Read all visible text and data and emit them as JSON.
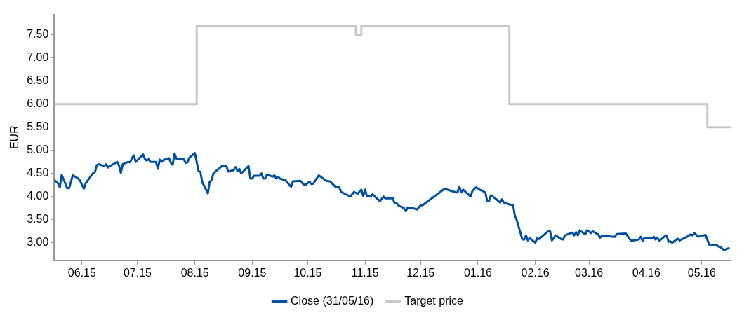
{
  "chart_data": {
    "type": "line",
    "ylabel": "EUR",
    "xlim": [
      "2015-05-17",
      "2016-05-17"
    ],
    "ylim": [
      2.62,
      7.94
    ],
    "xticks": [
      {
        "value": "2015-06-01",
        "label": "06.15"
      },
      {
        "value": "2015-07-01",
        "label": "07.15"
      },
      {
        "value": "2015-08-01",
        "label": "08.15"
      },
      {
        "value": "2015-09-01",
        "label": "09.15"
      },
      {
        "value": "2015-10-01",
        "label": "10.15"
      },
      {
        "value": "2015-11-01",
        "label": "11.15"
      },
      {
        "value": "2015-12-01",
        "label": "12.15"
      },
      {
        "value": "2016-01-01",
        "label": "01.16"
      },
      {
        "value": "2016-02-01",
        "label": "02.16"
      },
      {
        "value": "2016-03-01",
        "label": "03.16"
      },
      {
        "value": "2016-04-01",
        "label": "04.16"
      },
      {
        "value": "2016-05-01",
        "label": "05.16"
      }
    ],
    "yticks": [
      {
        "value": 3,
        "label": "3.00"
      },
      {
        "value": 3.5,
        "label": "3.50"
      },
      {
        "value": 4,
        "label": "4.00"
      },
      {
        "value": 4.5,
        "label": "4.50"
      },
      {
        "value": 5,
        "label": "5.00"
      },
      {
        "value": 5.5,
        "label": "5.50"
      },
      {
        "value": 6,
        "label": "6.00"
      },
      {
        "value": 6.5,
        "label": "6.50"
      },
      {
        "value": 7,
        "label": "7.00"
      },
      {
        "value": 7.5,
        "label": "7.50"
      }
    ],
    "grid": false,
    "legend": "bottom",
    "marker": "none",
    "line_style": "solid",
    "series": [
      {
        "name": "Close (31/05/16)",
        "color": "#0050a0",
        "x": [
          "2015-05-17",
          "2015-05-19",
          "2015-05-20",
          "2015-05-21",
          "2015-05-24",
          "2015-05-25",
          "2015-05-27",
          "2015-05-30",
          "2015-05-31",
          "2015-06-01",
          "2015-06-02",
          "2015-06-03",
          "2015-06-07",
          "2015-06-08",
          "2015-06-09",
          "2015-06-10",
          "2015-06-13",
          "2015-06-14",
          "2015-06-15",
          "2015-06-17",
          "2015-06-20",
          "2015-06-21",
          "2015-06-22",
          "2015-06-23",
          "2015-06-26",
          "2015-06-27",
          "2015-06-28",
          "2015-06-29",
          "2015-06-30",
          "2015-07-04",
          "2015-07-05",
          "2015-07-06",
          "2015-07-07",
          "2015-07-08",
          "2015-07-11",
          "2015-07-12",
          "2015-07-13",
          "2015-07-14",
          "2015-07-15",
          "2015-07-18",
          "2015-07-19",
          "2015-07-20",
          "2015-07-21",
          "2015-07-22",
          "2015-07-26",
          "2015-07-27",
          "2015-07-28",
          "2015-07-29",
          "2015-08-01",
          "2015-08-03",
          "2015-08-04",
          "2015-08-05",
          "2015-08-08",
          "2015-08-09",
          "2015-08-10",
          "2015-08-11",
          "2015-08-16",
          "2015-08-18",
          "2015-08-19",
          "2015-08-22",
          "2015-08-23",
          "2015-08-24",
          "2015-08-25",
          "2015-08-26",
          "2015-08-30",
          "2015-08-31",
          "2015-09-01",
          "2015-09-02",
          "2015-09-05",
          "2015-09-06",
          "2015-09-07",
          "2015-09-08",
          "2015-09-09",
          "2015-09-12",
          "2015-09-13",
          "2015-09-14",
          "2015-09-15",
          "2015-09-16",
          "2015-09-19",
          "2015-09-22",
          "2015-09-23",
          "2015-09-27",
          "2015-09-29",
          "2015-09-30",
          "2015-10-02",
          "2015-10-03",
          "2015-10-04",
          "2015-10-07",
          "2015-10-11",
          "2015-10-13",
          "2015-10-16",
          "2015-10-18",
          "2015-10-19",
          "2015-10-21",
          "2015-10-24",
          "2015-10-26",
          "2015-10-28",
          "2015-10-30",
          "2015-10-31",
          "2015-11-01",
          "2015-11-02",
          "2015-11-03",
          "2015-11-04",
          "2015-11-05",
          "2015-11-09",
          "2015-11-11",
          "2015-11-12",
          "2015-11-16",
          "2015-11-17",
          "2015-11-18",
          "2015-11-19",
          "2015-11-22",
          "2015-11-23",
          "2015-11-24",
          "2015-11-26",
          "2015-11-29",
          "2015-12-01",
          "2015-12-02",
          "2015-12-14",
          "2015-12-20",
          "2015-12-21",
          "2015-12-22",
          "2015-12-23",
          "2015-12-24",
          "2015-12-28",
          "2015-12-29",
          "2015-12-31",
          "2016-01-02",
          "2016-01-05",
          "2016-01-06",
          "2016-01-07",
          "2016-01-08",
          "2016-01-11",
          "2016-01-13",
          "2016-01-14",
          "2016-01-15",
          "2016-01-18",
          "2016-01-19",
          "2016-01-20",
          "2016-01-21",
          "2016-01-22",
          "2016-01-25",
          "2016-01-26",
          "2016-01-27",
          "2016-01-28",
          "2016-01-29",
          "2016-02-01",
          "2016-02-02",
          "2016-02-03",
          "2016-02-08",
          "2016-02-09",
          "2016-02-10",
          "2016-02-12",
          "2016-02-15",
          "2016-02-16",
          "2016-02-17",
          "2016-02-21",
          "2016-02-22",
          "2016-02-23",
          "2016-02-24",
          "2016-02-25",
          "2016-02-28",
          "2016-02-29",
          "2016-03-01",
          "2016-03-02",
          "2016-03-03",
          "2016-03-06",
          "2016-03-07",
          "2016-03-08",
          "2016-03-15",
          "2016-03-16",
          "2016-03-21",
          "2016-03-23",
          "2016-03-24",
          "2016-03-28",
          "2016-03-29",
          "2016-03-30",
          "2016-03-31",
          "2016-04-02",
          "2016-04-04",
          "2016-04-05",
          "2016-04-06",
          "2016-04-07",
          "2016-04-08",
          "2016-04-11",
          "2016-04-12",
          "2016-04-13",
          "2016-04-14",
          "2016-04-15",
          "2016-04-18",
          "2016-04-19",
          "2016-04-23",
          "2016-04-25",
          "2016-04-26",
          "2016-04-27",
          "2016-04-29",
          "2016-05-03",
          "2016-05-05",
          "2016-05-09",
          "2016-05-10",
          "2016-05-11",
          "2016-05-13",
          "2016-05-16"
        ],
        "values": [
          4.36,
          4.29,
          4.2,
          4.47,
          4.18,
          4.18,
          4.46,
          4.39,
          4.34,
          4.25,
          4.17,
          4.29,
          4.51,
          4.53,
          4.68,
          4.7,
          4.66,
          4.7,
          4.63,
          4.68,
          4.75,
          4.67,
          4.51,
          4.7,
          4.75,
          4.74,
          4.83,
          4.89,
          4.75,
          4.91,
          4.81,
          4.78,
          4.81,
          4.75,
          4.75,
          4.6,
          4.8,
          4.75,
          4.79,
          4.83,
          4.73,
          4.69,
          4.93,
          4.82,
          4.81,
          4.73,
          4.74,
          4.84,
          4.94,
          4.55,
          4.53,
          4.31,
          4.07,
          4.32,
          4.35,
          4.5,
          4.67,
          4.67,
          4.54,
          4.57,
          4.64,
          4.55,
          4.6,
          4.5,
          4.66,
          4.39,
          4.39,
          4.45,
          4.45,
          4.5,
          4.39,
          4.39,
          4.48,
          4.43,
          4.46,
          4.39,
          4.43,
          4.39,
          4.35,
          4.21,
          4.33,
          4.34,
          4.25,
          4.26,
          4.32,
          4.27,
          4.28,
          4.46,
          4.34,
          4.33,
          4.21,
          4.2,
          4.1,
          4.06,
          4.0,
          4.1,
          4.06,
          4.15,
          4.01,
          4.15,
          4.0,
          4.02,
          4.0,
          4.05,
          3.9,
          4.0,
          3.96,
          3.96,
          3.85,
          3.86,
          3.81,
          3.75,
          3.68,
          3.76,
          3.76,
          3.72,
          3.81,
          3.81,
          4.17,
          4.09,
          4.09,
          4.21,
          4.09,
          4.15,
          4.0,
          4.12,
          4.2,
          4.15,
          4.09,
          3.9,
          3.9,
          4.03,
          3.94,
          3.87,
          3.94,
          3.87,
          3.83,
          3.82,
          3.81,
          3.58,
          3.49,
          3.07,
          3.07,
          3.16,
          3.05,
          3.1,
          3.0,
          3.1,
          3.08,
          3.25,
          3.25,
          3.05,
          3.16,
          3.08,
          3.07,
          3.16,
          3.22,
          3.16,
          3.23,
          3.16,
          3.27,
          3.18,
          3.27,
          3.25,
          3.21,
          3.25,
          3.18,
          3.11,
          3.15,
          3.13,
          3.19,
          3.2,
          3.08,
          3.04,
          3.07,
          3.13,
          3.04,
          3.11,
          3.11,
          3.09,
          3.13,
          3.07,
          3.11,
          3.04,
          3.14,
          3.16,
          3.02,
          3.03,
          3.0,
          3.09,
          3.05,
          3.13,
          3.18,
          3.16,
          3.21,
          3.13,
          3.17,
          2.96,
          2.95,
          2.92,
          2.91,
          2.84,
          2.89
        ]
      },
      {
        "name": "Target price",
        "type": "step",
        "color": "#c8c8c8",
        "x": [
          "2015-05-17",
          "2015-08-02",
          "2015-10-27",
          "2015-10-30",
          "2016-01-18",
          "2016-05-04",
          "2016-05-17"
        ],
        "values": [
          6.0,
          7.7,
          7.5,
          7.7,
          6.0,
          5.5,
          5.5
        ]
      }
    ]
  }
}
